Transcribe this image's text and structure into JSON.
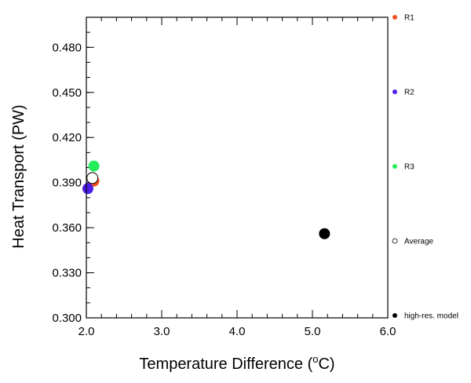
{
  "chart_data": {
    "type": "scatter",
    "xlabel": "Temperature Difference (",
    "xlabel_sup": "o",
    "xlabel_unit": "C)",
    "ylabel": "Heat Transport (PW)",
    "xlim": [
      2.0,
      6.0
    ],
    "ylim": [
      0.3,
      0.5
    ],
    "x_ticks": [
      2.0,
      3.0,
      4.0,
      5.0,
      6.0
    ],
    "x_tick_labels": [
      "2.0",
      "3.0",
      "4.0",
      "5.0",
      "6.0"
    ],
    "y_ticks": [
      0.3,
      0.33,
      0.36,
      0.39,
      0.42,
      0.45,
      0.48
    ],
    "y_tick_labels": [
      "0.300",
      "0.330",
      "0.360",
      "0.390",
      "0.420",
      "0.450",
      "0.480"
    ],
    "grid": false,
    "legend_position": "right",
    "series": [
      {
        "name": "R1",
        "color": "#f4511e",
        "points": [
          {
            "x": 2.1,
            "y": 0.391
          }
        ]
      },
      {
        "name": "R2",
        "color": "#4d1ee8",
        "points": [
          {
            "x": 2.02,
            "y": 0.386
          }
        ]
      },
      {
        "name": "R3",
        "color": "#22ee5a",
        "points": [
          {
            "x": 2.1,
            "y": 0.401
          }
        ]
      },
      {
        "name": "Average",
        "color": "#ffffff",
        "stroke": "#000000",
        "points": [
          {
            "x": 2.08,
            "y": 0.393
          }
        ]
      },
      {
        "name": "high-res. model",
        "color": "#000000",
        "points": [
          {
            "x": 5.16,
            "y": 0.356
          }
        ]
      }
    ]
  }
}
